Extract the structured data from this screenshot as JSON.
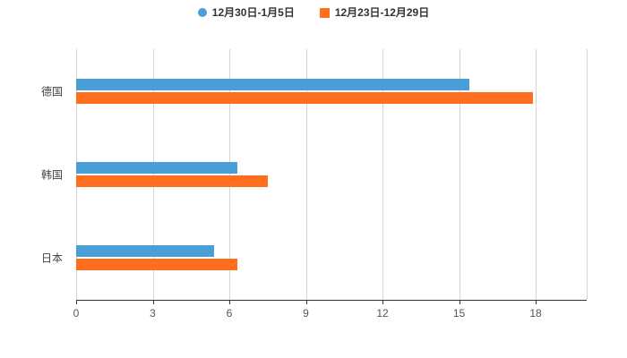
{
  "chart_data": {
    "type": "bar",
    "orientation": "horizontal",
    "title": "",
    "xlabel": "",
    "ylabel": "",
    "legend_position": "top",
    "grid": true,
    "categories": [
      "德国",
      "韩国",
      "日本"
    ],
    "series": [
      {
        "name": "12月30日-1月5日",
        "marker": "circle",
        "color": "#4A9FD8",
        "values": [
          15.4,
          6.3,
          5.4
        ]
      },
      {
        "name": "12月23日-12月29日",
        "marker": "square",
        "color": "#FF6D1F",
        "values": [
          17.9,
          7.5,
          6.3
        ]
      }
    ],
    "x_ticks": [
      0,
      3,
      6,
      9,
      12,
      15,
      18
    ],
    "xlim": [
      0,
      20
    ]
  },
  "colors": {
    "background": "#ffffff",
    "axis_line": "#333333",
    "grid_line": "#d4d4d4",
    "tick_label": "#555555",
    "category_label": "#444444"
  }
}
